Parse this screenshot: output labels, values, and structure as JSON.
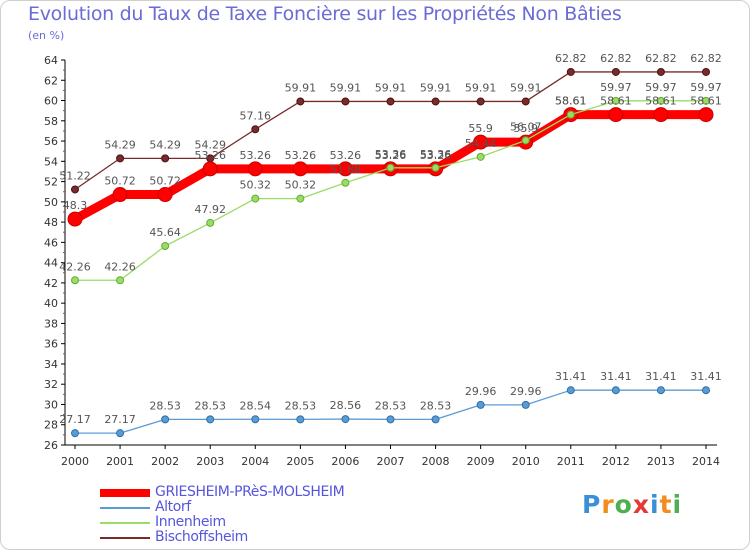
{
  "title": "Evolution du Taux de Taxe Foncière sur les Propriétés Non Bâties",
  "unit": "(en %)",
  "colors": {
    "GRIESHEIM-PRèS-MOLSHEIM": "#ff0000",
    "Altorf": "#5b9bd5",
    "Innenheim": "#99dd66",
    "Bischoffsheim": "#7a2a2a"
  },
  "chart_data": {
    "type": "line",
    "x": [
      2000,
      2001,
      2002,
      2003,
      2004,
      2005,
      2006,
      2007,
      2008,
      2009,
      2010,
      2011,
      2012,
      2013,
      2014
    ],
    "ylim": [
      26,
      64
    ],
    "yticks": [
      26,
      28,
      30,
      32,
      34,
      36,
      38,
      40,
      42,
      44,
      46,
      48,
      50,
      52,
      54,
      56,
      58,
      60,
      62,
      64
    ],
    "grid": false,
    "legend_position": "bottom-left",
    "series": [
      {
        "name": "GRIESHEIM-PRèS-MOLSHEIM",
        "values": [
          48.3,
          50.72,
          50.72,
          53.26,
          53.26,
          53.26,
          53.26,
          53.26,
          53.26,
          55.9,
          55.9,
          58.61,
          58.61,
          58.61,
          58.61
        ]
      },
      {
        "name": "Altorf",
        "values": [
          27.17,
          27.17,
          28.53,
          28.53,
          28.54,
          28.53,
          28.56,
          28.53,
          28.53,
          29.96,
          29.96,
          31.41,
          31.41,
          31.41,
          31.41
        ]
      },
      {
        "name": "Innenheim",
        "values": [
          42.26,
          42.26,
          45.64,
          47.92,
          50.32,
          50.32,
          51.88,
          53.36,
          53.36,
          54.44,
          56.07,
          58.61,
          59.97,
          59.97,
          59.97
        ]
      },
      {
        "name": "Bischoffsheim",
        "values": [
          51.22,
          54.29,
          54.29,
          54.29,
          57.16,
          59.91,
          59.91,
          59.91,
          59.91,
          59.91,
          59.91,
          62.82,
          62.82,
          62.82,
          62.82
        ]
      }
    ]
  },
  "legend": [
    {
      "label": "GRIESHEIM-PRèS-MOLSHEIM"
    },
    {
      "label": "Altorf"
    },
    {
      "label": "Innenheim"
    },
    {
      "label": "Bischoffsheim"
    }
  ],
  "logo": {
    "letters": [
      "P",
      "r",
      "o",
      "x",
      "i",
      "t",
      "i"
    ],
    "colors": [
      "#3a8fd8",
      "#f28c1e",
      "#4caf50",
      "#e53935",
      "#3a8fd8",
      "#f28c1e",
      "#4caf50"
    ]
  }
}
